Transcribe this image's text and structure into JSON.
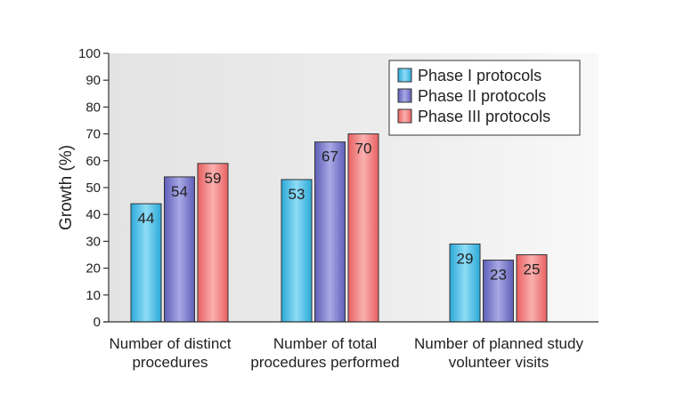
{
  "chart_data": {
    "type": "bar",
    "ylabel": "Growth (%)",
    "xlabel": "",
    "ylim": [
      0,
      100
    ],
    "yticks": [
      0,
      10,
      20,
      30,
      40,
      50,
      60,
      70,
      80,
      90,
      100
    ],
    "grid": false,
    "legend_position": "top-right",
    "categories": [
      [
        "Number of distinct",
        "procedures"
      ],
      [
        "Number of total",
        "procedures performed"
      ],
      [
        "Number of planned study",
        "volunteer visits"
      ]
    ],
    "series": [
      {
        "name": "Phase I protocols",
        "values": [
          44,
          53,
          29
        ],
        "color": "#4fc3e8"
      },
      {
        "name": "Phase II protocols",
        "values": [
          54,
          67,
          23
        ],
        "color": "#7f7fd0"
      },
      {
        "name": "Phase III protocols",
        "values": [
          59,
          70,
          25
        ],
        "color": "#f07f7f"
      }
    ]
  }
}
